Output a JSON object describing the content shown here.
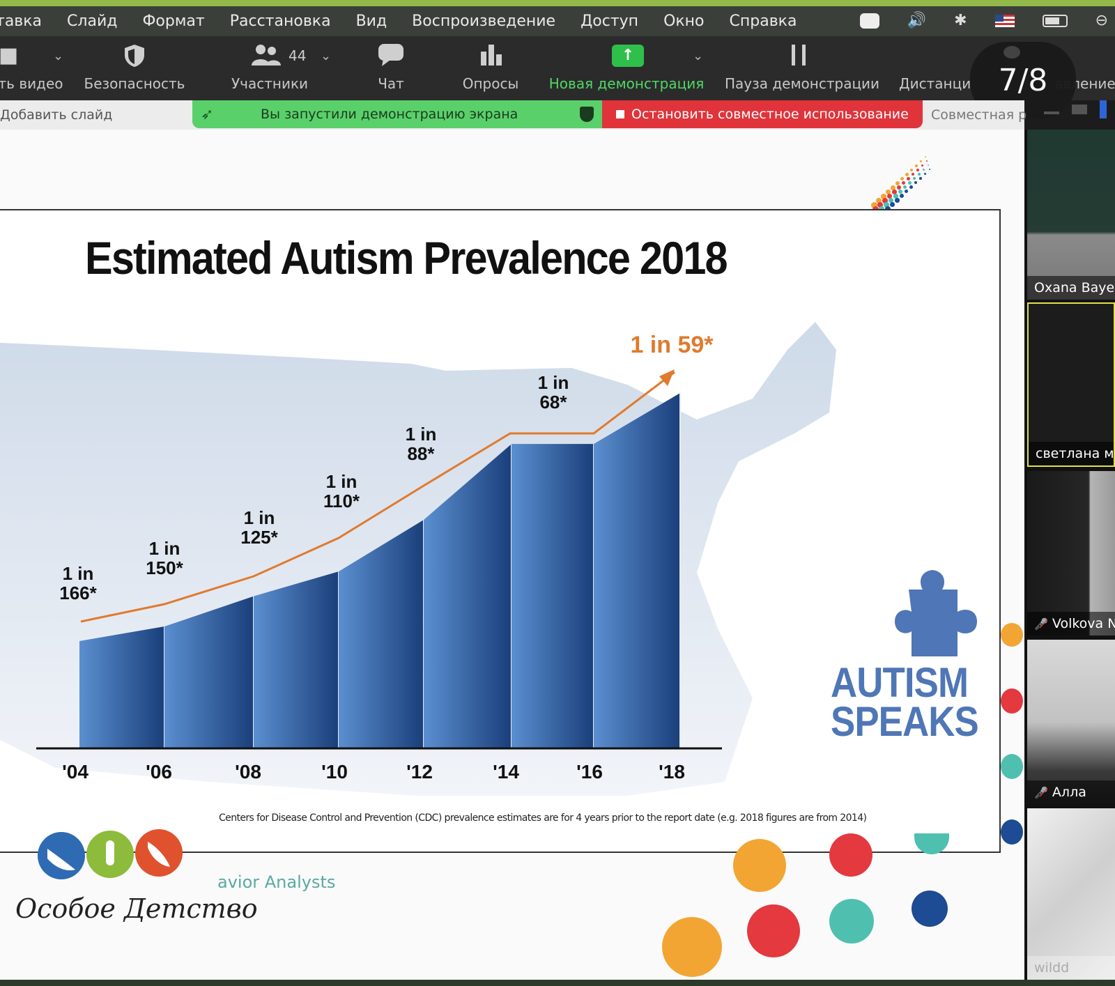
{
  "menubar": {
    "items": [
      "тавка",
      "Слайд",
      "Формат",
      "Расстановка",
      "Вид",
      "Воспроизведение",
      "Доступ",
      "Окно",
      "Справка"
    ]
  },
  "toolbar": {
    "video_label": "ть видео",
    "security_label": "Безопасность",
    "participants_label": "Участники",
    "participants_count": "44",
    "chat_label": "Чат",
    "polls_label": "Опросы",
    "new_share_label": "Новая демонстрация",
    "pause_share_label": "Пауза демонстрации",
    "remote_label": "Дистанционное управление",
    "remote_label_visible": "Дистанци",
    "remote_label_tail": "авление",
    "page_counter": "7/8"
  },
  "subbar": {
    "add_slide": "Добавить слайд",
    "sharing_notice": "Вы запустили демонстрацию экрана",
    "stop_sharing": "Остановить совместное использование",
    "joint_label": "Совместная р"
  },
  "slide": {
    "title": "Estimated Autism Prevalence 2018",
    "logo_text_line1": "AUTISM",
    "logo_text_line2": "SPEAKS",
    "footnote": "Centers for Disease Control and Prevention (CDC) prevalence estimates are for 4 years prior to the report date (e.g. 2018 figures are from 2014)",
    "org_name": "Особое Детство",
    "analysts": "avior Analysts"
  },
  "chart_data": {
    "type": "bar",
    "title": "Estimated Autism Prevalence 2018",
    "categories": [
      "'04",
      "'06",
      "'08",
      "'10",
      "'12",
      "'14",
      "'16",
      "'18"
    ],
    "labels_line1": [
      "1 in",
      "1 in",
      "1 in",
      "1 in",
      "1 in",
      "1 in",
      "",
      "1 in 59*"
    ],
    "labels_line2": [
      "166*",
      "150*",
      "125*",
      "110*",
      "88*",
      "68*",
      "",
      ""
    ],
    "series": [
      {
        "values": [
          166,
          150,
          125,
          110,
          88,
          68,
          68,
          59
        ]
      }
    ],
    "arrow_color": "#e07a2e",
    "bar_color_light": "#5b8fd0",
    "bar_color_dark": "#1a3f7a",
    "grid": false
  },
  "participants": [
    {
      "name": "Oxana Baye",
      "muted": false
    },
    {
      "name": "светлана м",
      "muted": false
    },
    {
      "name": "Volkova N",
      "muted": true
    },
    {
      "name": "Алла",
      "muted": true
    },
    {
      "name": "wildd",
      "muted": false
    }
  ],
  "colors": {
    "menubar_accent": "#93b94a",
    "share_green": "#2fbf4b",
    "stop_red": "#e0333a",
    "notice_green": "#5ad06a"
  }
}
